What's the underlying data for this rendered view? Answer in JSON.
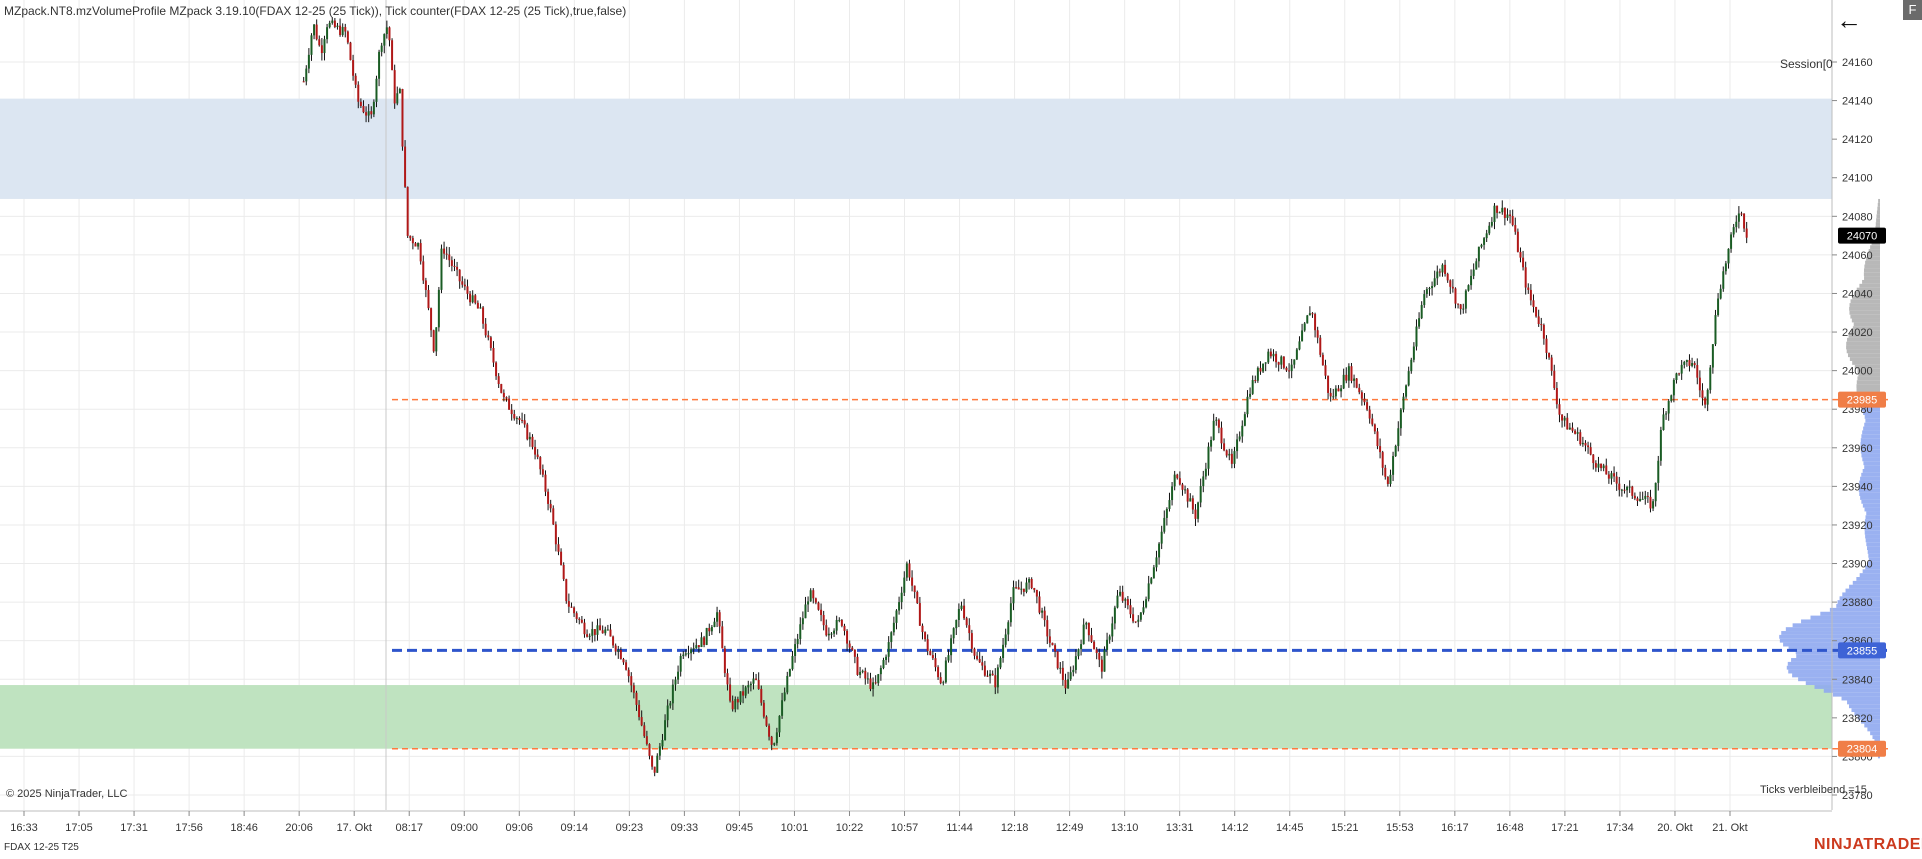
{
  "header": {
    "indicator_text": "MZpack.NT8.mzVolumeProfile MZpack 3.19.10(FDAX 12-25 (25 Tick)), Tick counter(FDAX 12-25 (25 Tick),true,false)"
  },
  "panel": {
    "session_label": "Session[0",
    "back_icon": "back-arrow-icon",
    "corner_label": "F",
    "copyright": "© 2025 NinjaTrader, LLC",
    "ticks_remaining": "Ticks verbleibend =15",
    "instrument": "FDAX 12-25 T25",
    "brand": "NINJATRADER"
  },
  "colors": {
    "bull_candle": "#1a5c24",
    "bear_candle": "#b01818",
    "resistance_zone": "#dce6f2",
    "support_zone": "#bfe3c0",
    "poc_line": "#2e55cc",
    "level_line": "#ff7a3d",
    "price_badge": "#000000",
    "profile_upper": "#b0b0b0",
    "profile_lower": "#8fa8f0"
  },
  "chart_data": {
    "type": "candlestick",
    "instrument": "FDAX 12-25 (25 Tick)",
    "x_tick_labels": [
      "16:33",
      "17:05",
      "17:31",
      "17:56",
      "18:46",
      "20:06",
      "17. Okt",
      "08:17",
      "09:00",
      "09:06",
      "09:14",
      "09:23",
      "09:33",
      "09:45",
      "10:01",
      "10:22",
      "10:57",
      "11:44",
      "12:18",
      "12:49",
      "13:10",
      "13:31",
      "14:12",
      "14:45",
      "15:21",
      "15:53",
      "16:17",
      "16:48",
      "17:21",
      "17:34",
      "20. Okt",
      "21. Okt"
    ],
    "y_ticks": [
      23780,
      23800,
      23820,
      23840,
      23860,
      23880,
      23900,
      23920,
      23940,
      23960,
      23980,
      24000,
      24020,
      24040,
      24060,
      24080,
      24100,
      24120,
      24140,
      24160
    ],
    "ylim": [
      23775,
      24180
    ],
    "current_price": 24070,
    "levels": [
      {
        "price": 23985,
        "style": "dashed",
        "color": "#ff7a3d",
        "label": "23985"
      },
      {
        "price": 23855,
        "style": "dashed",
        "color": "#2e55cc",
        "label": "23855"
      },
      {
        "price": 23804,
        "style": "dashed",
        "color": "#ff7a3d",
        "label": "23804"
      }
    ],
    "zones": [
      {
        "from": 24089,
        "to": 24141,
        "color": "#dce6f2"
      },
      {
        "from": 23804,
        "to": 23837,
        "color": "#bfe3c0"
      }
    ],
    "price_path": [
      {
        "x": 0.158,
        "p": 24150
      },
      {
        "x": 0.163,
        "p": 24180
      },
      {
        "x": 0.167,
        "p": 24165
      },
      {
        "x": 0.17,
        "p": 24180
      },
      {
        "x": 0.18,
        "p": 24175
      },
      {
        "x": 0.186,
        "p": 24140
      },
      {
        "x": 0.193,
        "p": 24130
      },
      {
        "x": 0.198,
        "p": 24170
      },
      {
        "x": 0.202,
        "p": 24180
      },
      {
        "x": 0.205,
        "p": 24140
      },
      {
        "x": 0.208,
        "p": 24145
      },
      {
        "x": 0.212,
        "p": 24070
      },
      {
        "x": 0.218,
        "p": 24065
      },
      {
        "x": 0.226,
        "p": 24010
      },
      {
        "x": 0.23,
        "p": 24065
      },
      {
        "x": 0.24,
        "p": 24045
      },
      {
        "x": 0.25,
        "p": 24030
      },
      {
        "x": 0.262,
        "p": 23985
      },
      {
        "x": 0.27,
        "p": 23975
      },
      {
        "x": 0.278,
        "p": 23960
      },
      {
        "x": 0.286,
        "p": 23930
      },
      {
        "x": 0.295,
        "p": 23880
      },
      {
        "x": 0.305,
        "p": 23865
      },
      {
        "x": 0.315,
        "p": 23865
      },
      {
        "x": 0.325,
        "p": 23850
      },
      {
        "x": 0.333,
        "p": 23820
      },
      {
        "x": 0.34,
        "p": 23790
      },
      {
        "x": 0.347,
        "p": 23822
      },
      {
        "x": 0.355,
        "p": 23855
      },
      {
        "x": 0.366,
        "p": 23860
      },
      {
        "x": 0.373,
        "p": 23875
      },
      {
        "x": 0.38,
        "p": 23825
      },
      {
        "x": 0.393,
        "p": 23840
      },
      {
        "x": 0.402,
        "p": 23805
      },
      {
        "x": 0.412,
        "p": 23850
      },
      {
        "x": 0.421,
        "p": 23885
      },
      {
        "x": 0.43,
        "p": 23865
      },
      {
        "x": 0.438,
        "p": 23870
      },
      {
        "x": 0.446,
        "p": 23845
      },
      {
        "x": 0.455,
        "p": 23835
      },
      {
        "x": 0.463,
        "p": 23860
      },
      {
        "x": 0.472,
        "p": 23900
      },
      {
        "x": 0.481,
        "p": 23860
      },
      {
        "x": 0.49,
        "p": 23838
      },
      {
        "x": 0.5,
        "p": 23880
      },
      {
        "x": 0.508,
        "p": 23850
      },
      {
        "x": 0.518,
        "p": 23838
      },
      {
        "x": 0.527,
        "p": 23885
      },
      {
        "x": 0.537,
        "p": 23890
      },
      {
        "x": 0.546,
        "p": 23860
      },
      {
        "x": 0.555,
        "p": 23835
      },
      {
        "x": 0.565,
        "p": 23870
      },
      {
        "x": 0.573,
        "p": 23845
      },
      {
        "x": 0.582,
        "p": 23885
      },
      {
        "x": 0.592,
        "p": 23868
      },
      {
        "x": 0.603,
        "p": 23910
      },
      {
        "x": 0.612,
        "p": 23948
      },
      {
        "x": 0.622,
        "p": 23925
      },
      {
        "x": 0.632,
        "p": 23975
      },
      {
        "x": 0.641,
        "p": 23950
      },
      {
        "x": 0.65,
        "p": 23990
      },
      {
        "x": 0.66,
        "p": 24010
      },
      {
        "x": 0.672,
        "p": 24000
      },
      {
        "x": 0.682,
        "p": 24033
      },
      {
        "x": 0.692,
        "p": 23985
      },
      {
        "x": 0.702,
        "p": 24000
      },
      {
        "x": 0.712,
        "p": 23980
      },
      {
        "x": 0.722,
        "p": 23940
      },
      {
        "x": 0.731,
        "p": 23990
      },
      {
        "x": 0.741,
        "p": 24040
      },
      {
        "x": 0.751,
        "p": 24055
      },
      {
        "x": 0.76,
        "p": 24030
      },
      {
        "x": 0.769,
        "p": 24060
      },
      {
        "x": 0.778,
        "p": 24085
      },
      {
        "x": 0.786,
        "p": 24080
      },
      {
        "x": 0.795,
        "p": 24040
      },
      {
        "x": 0.803,
        "p": 24020
      },
      {
        "x": 0.812,
        "p": 23975
      },
      {
        "x": 0.822,
        "p": 23965
      },
      {
        "x": 0.832,
        "p": 23950
      },
      {
        "x": 0.843,
        "p": 23940
      },
      {
        "x": 0.852,
        "p": 23935
      },
      {
        "x": 0.86,
        "p": 23930
      },
      {
        "x": 0.865,
        "p": 23975
      },
      {
        "x": 0.873,
        "p": 24000
      },
      {
        "x": 0.881,
        "p": 24005
      },
      {
        "x": 0.887,
        "p": 23980
      },
      {
        "x": 0.894,
        "p": 24040
      },
      {
        "x": 0.9,
        "p": 24065
      },
      {
        "x": 0.905,
        "p": 24085
      },
      {
        "x": 0.909,
        "p": 24070
      }
    ]
  }
}
